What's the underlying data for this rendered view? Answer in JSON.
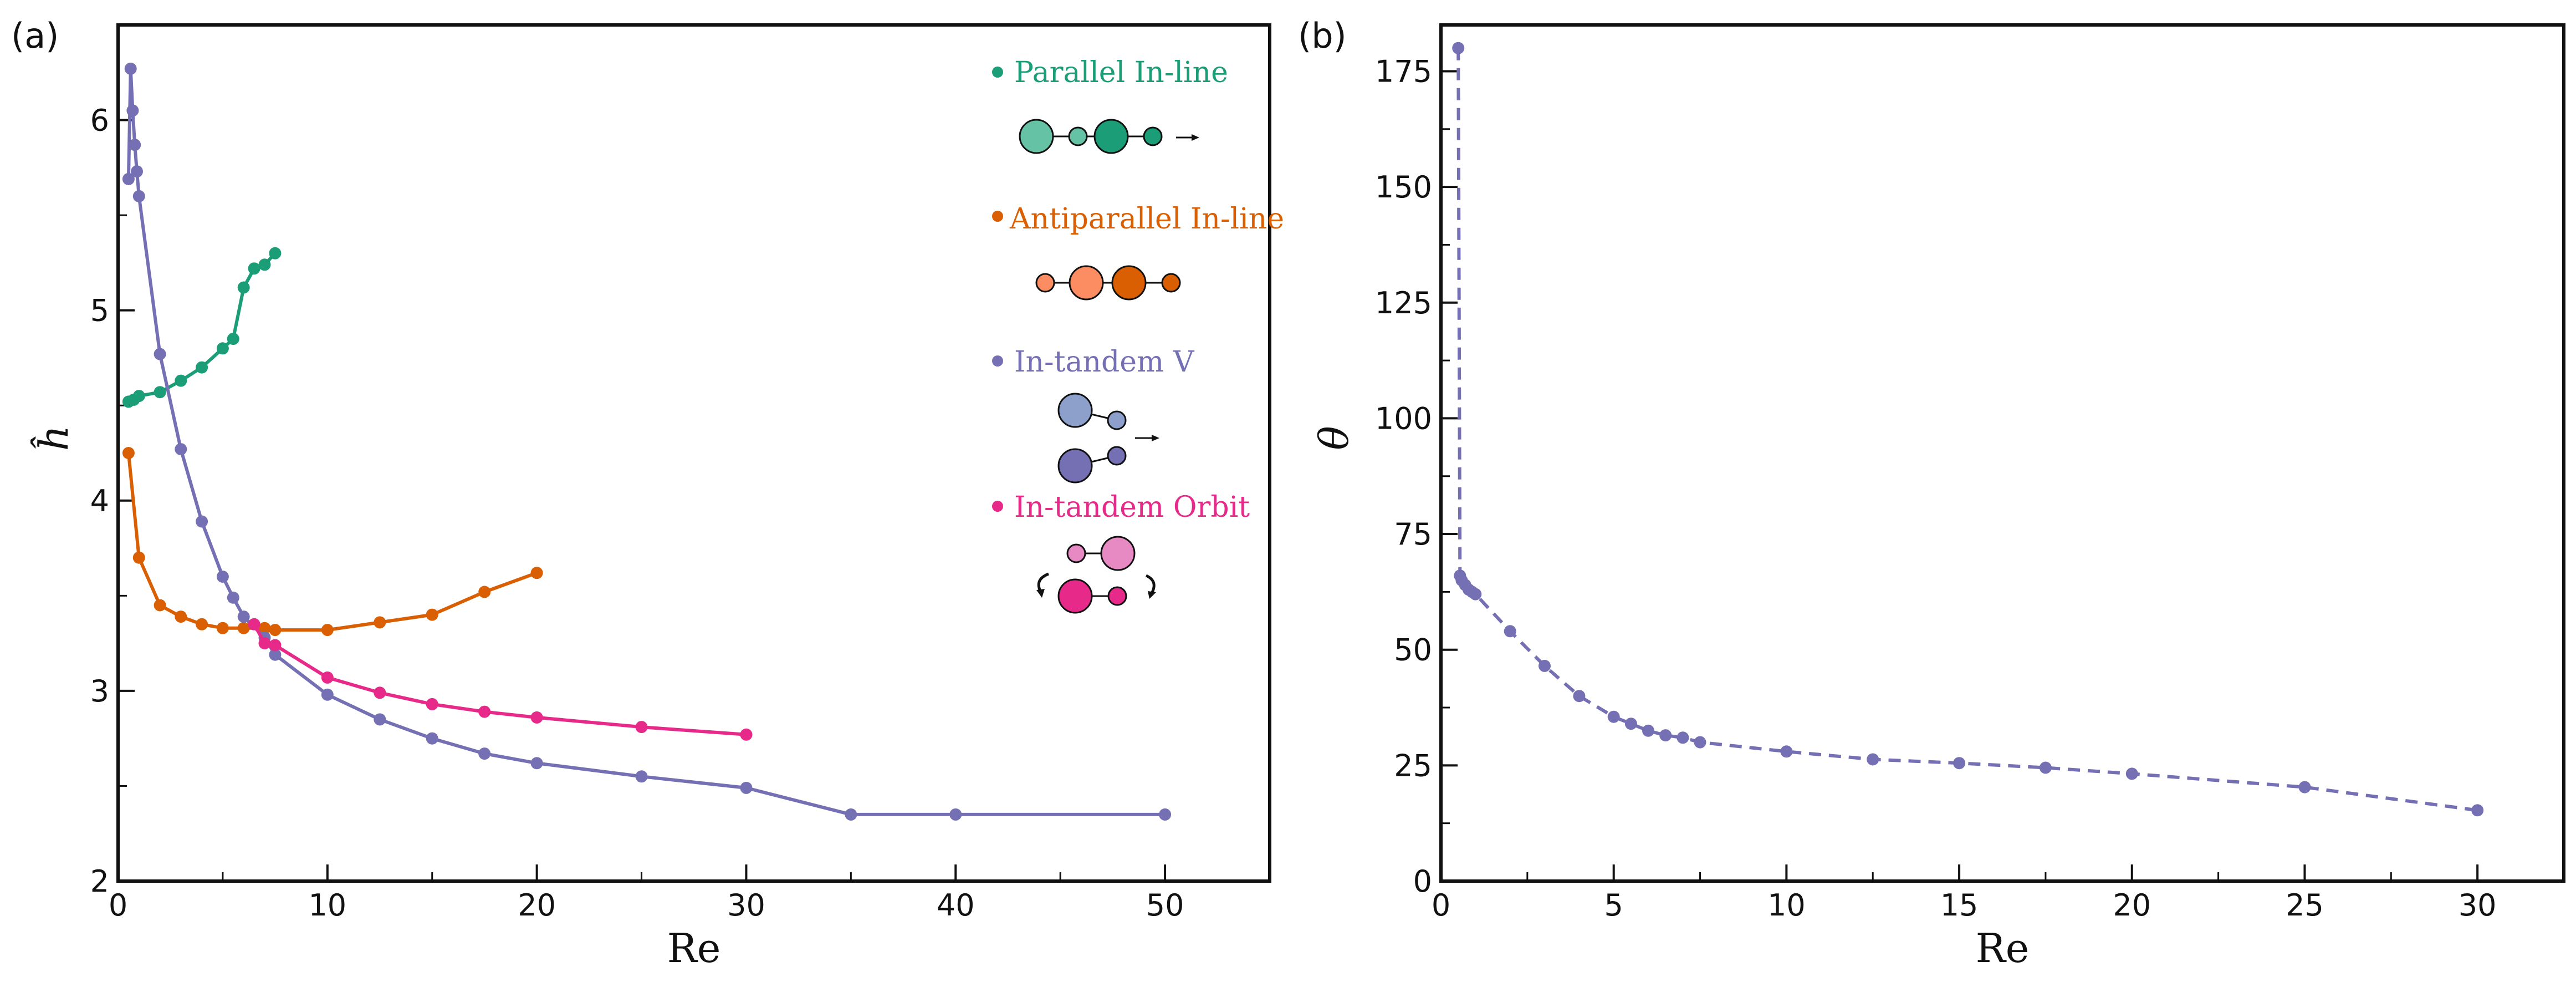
{
  "chart_data": [
    {
      "panel": "(a)",
      "type": "line",
      "xlabel": "Re",
      "ylabel": "ĥ",
      "xlim": [
        0,
        55
      ],
      "ylim": [
        2,
        6.5
      ],
      "xticks": [
        0,
        10,
        20,
        30,
        40,
        50
      ],
      "yticks": [
        2,
        3,
        4,
        5,
        6
      ],
      "grid": false,
      "legend_position": "top-right",
      "series": [
        {
          "name": "Parallel In-line",
          "color": "#1b9e77",
          "x": [
            0.5,
            0.75,
            1,
            2,
            3,
            4,
            5,
            5.5,
            6,
            6.5,
            7,
            7.5
          ],
          "y": [
            4.52,
            4.53,
            4.55,
            4.57,
            4.63,
            4.7,
            4.8,
            4.85,
            5.12,
            5.22,
            5.24,
            5.3
          ]
        },
        {
          "name": "Antiparallel In-line",
          "color": "#d95f02",
          "x": [
            0.5,
            1,
            2,
            3,
            4,
            5,
            6,
            7,
            7.5,
            10,
            12.5,
            15,
            17.5,
            20
          ],
          "y": [
            4.25,
            3.7,
            3.45,
            3.39,
            3.35,
            3.33,
            3.33,
            3.33,
            3.32,
            3.32,
            3.36,
            3.4,
            3.52,
            3.62
          ]
        },
        {
          "name": "In-tandem V",
          "color": "#7570b3",
          "x": [
            0.5,
            0.6,
            0.7,
            0.8,
            0.9,
            1,
            2,
            3,
            4,
            5,
            5.5,
            6,
            7,
            7.5,
            10,
            12.5,
            15,
            17.5,
            20,
            25,
            30,
            35,
            40,
            50
          ],
          "y": [
            5.69,
            6.27,
            6.05,
            5.87,
            5.73,
            5.6,
            4.77,
            4.27,
            3.89,
            3.6,
            3.49,
            3.39,
            3.28,
            3.19,
            2.98,
            2.85,
            2.75,
            2.67,
            2.62,
            2.55,
            2.49,
            2.35,
            2.35,
            2.35
          ]
        },
        {
          "name": "In-tandem Orbit",
          "color": "#e7298a",
          "x": [
            6.5,
            7,
            7.5,
            10,
            12.5,
            15,
            17.5,
            20,
            25,
            30
          ],
          "y": [
            3.35,
            3.25,
            3.24,
            3.07,
            2.99,
            2.93,
            2.89,
            2.86,
            2.81,
            2.77
          ]
        }
      ]
    },
    {
      "panel": "(b)",
      "type": "line",
      "xlabel": "Re",
      "ylabel": "θ",
      "xlim": [
        0,
        32.5
      ],
      "ylim": [
        0,
        185
      ],
      "xticks": [
        0,
        5,
        10,
        15,
        20,
        25,
        30
      ],
      "yticks": [
        0,
        25,
        50,
        75,
        100,
        125,
        150,
        175
      ],
      "grid": false,
      "line_style": "dashed",
      "series": [
        {
          "color": "#7570b3",
          "x": [
            0.5,
            0.55,
            0.6,
            0.7,
            0.8,
            0.9,
            1,
            2,
            3,
            4,
            5,
            5.5,
            6,
            6.5,
            7,
            7.5,
            10,
            12.5,
            15,
            17.5,
            20,
            25,
            30
          ],
          "y": [
            180,
            66,
            65,
            64,
            63,
            62.5,
            62,
            54,
            46.5,
            40,
            35.5,
            34,
            32.5,
            31.5,
            31,
            30,
            28,
            26.3,
            25.5,
            24.5,
            23.2,
            20.3,
            15.3
          ]
        }
      ]
    }
  ],
  "colors": {
    "parallel_light": "#66c2a5",
    "parallel_dark": "#1b9e77",
    "antiparallel_light": "#fc8d62",
    "antiparallel_dark": "#d95f02",
    "tandem_v_light": "#8da0cb",
    "tandem_v_dark": "#7570b3",
    "orbit_light": "#e78ac3",
    "orbit_dark": "#e7298a"
  }
}
